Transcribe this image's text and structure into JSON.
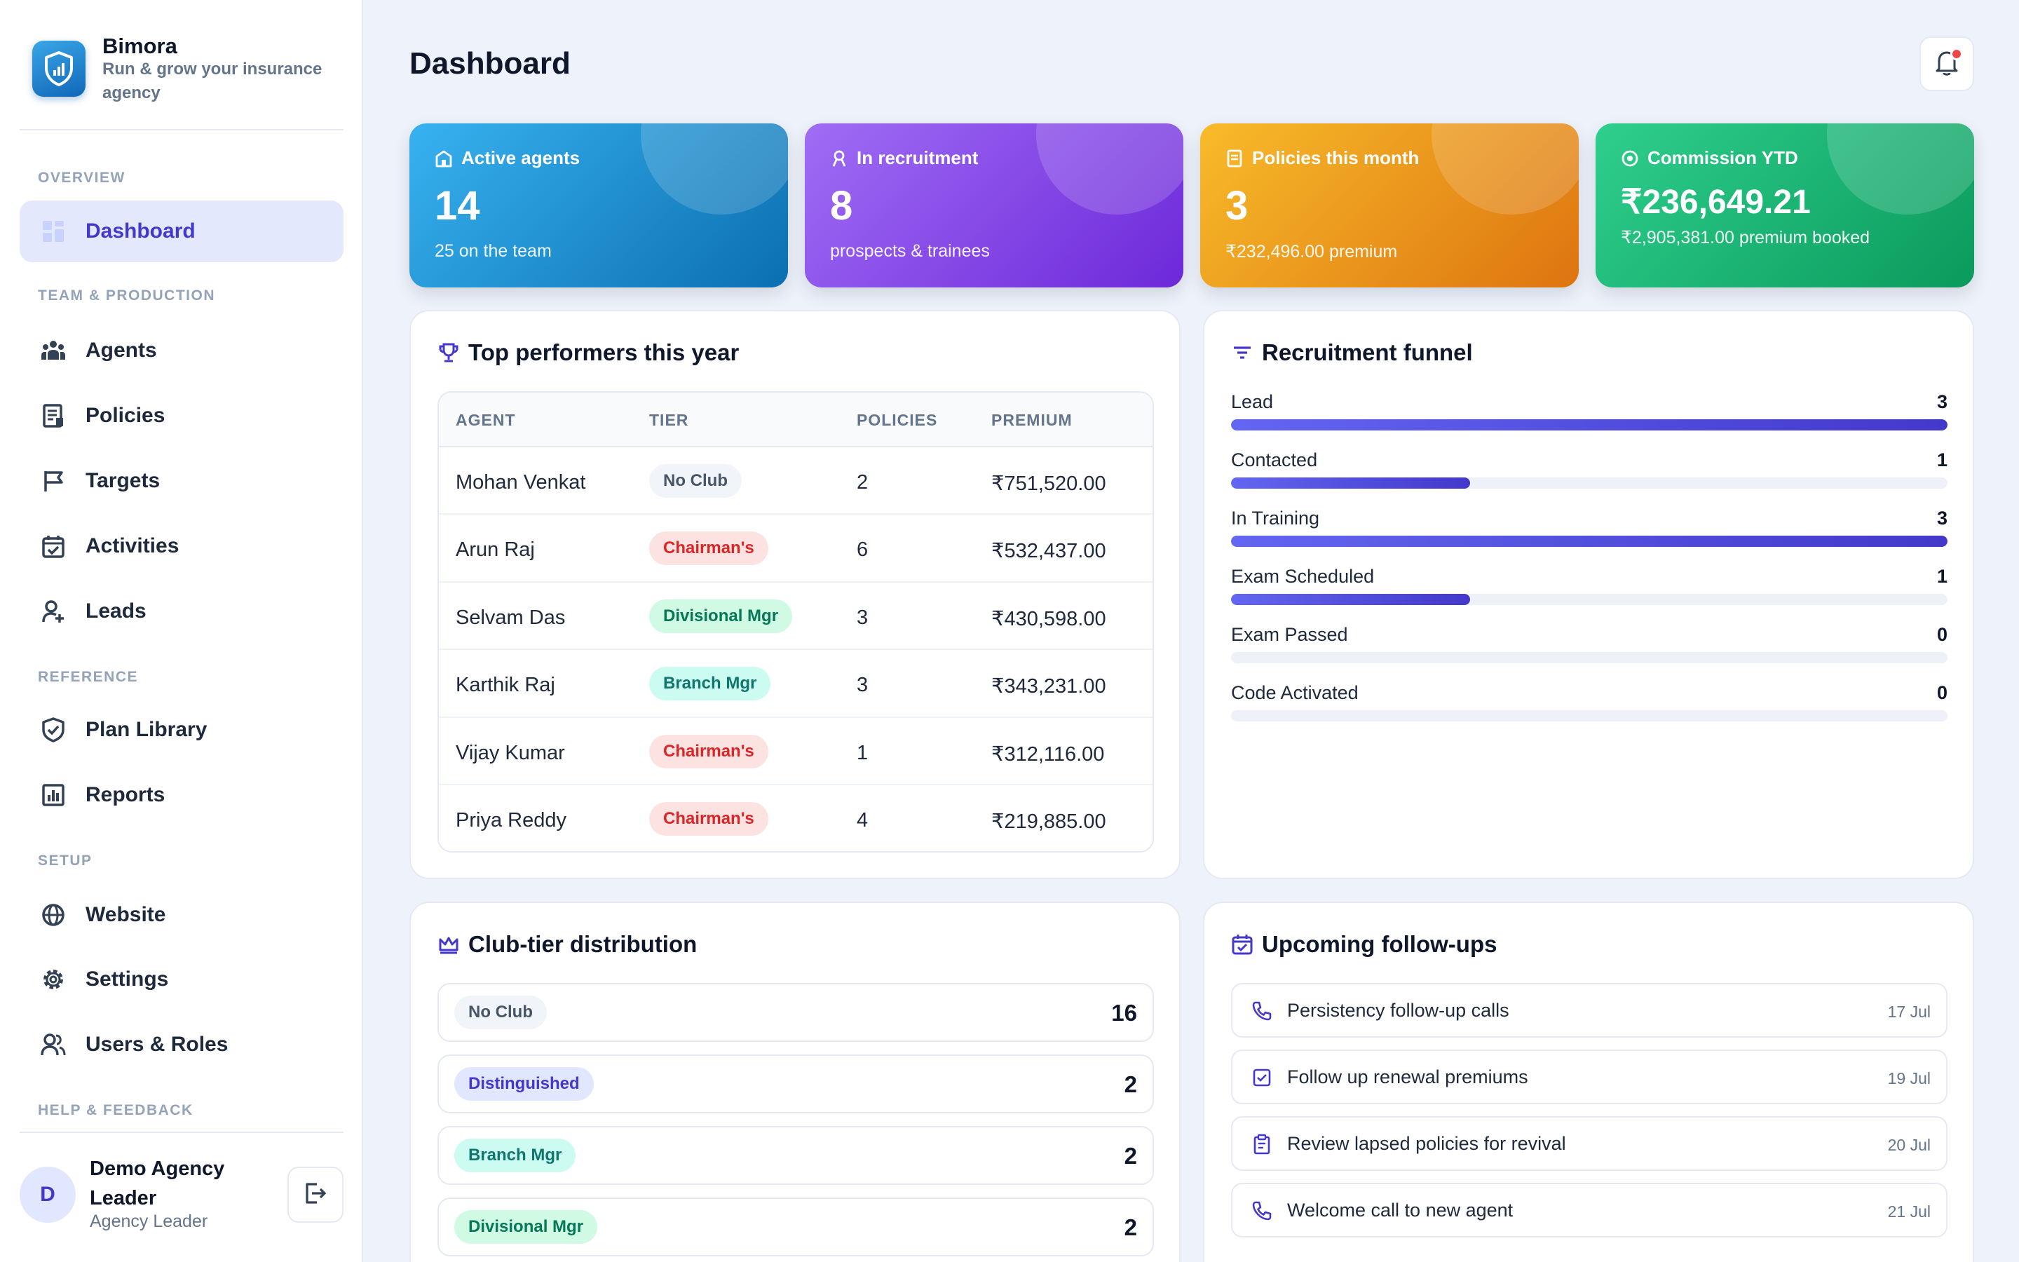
{
  "brand": {
    "name": "Bimora",
    "tagline": "Run & grow your insurance agency"
  },
  "nav": {
    "overview_label": "OVERVIEW",
    "team_label": "TEAM & PRODUCTION",
    "reference_label": "REFERENCE",
    "setup_label": "SETUP",
    "help_label": "HELP & FEEDBACK",
    "items": [
      {
        "label": "Dashboard",
        "icon": "grid-icon",
        "active": true
      },
      {
        "label": "Agents",
        "icon": "people-icon"
      },
      {
        "label": "Policies",
        "icon": "document-icon"
      },
      {
        "label": "Targets",
        "icon": "flag-icon"
      },
      {
        "label": "Activities",
        "icon": "calendar-check-icon"
      },
      {
        "label": "Leads",
        "icon": "user-plus-icon"
      },
      {
        "label": "Plan Library",
        "icon": "shield-check-icon"
      },
      {
        "label": "Reports",
        "icon": "bar-chart-icon"
      },
      {
        "label": "Website",
        "icon": "globe-icon"
      },
      {
        "label": "Settings",
        "icon": "gear-icon"
      },
      {
        "label": "Users & Roles",
        "icon": "users-icon"
      }
    ]
  },
  "user": {
    "initial": "D",
    "name": "Demo Agency Leader",
    "role": "Agency Leader"
  },
  "page": {
    "title": "Dashboard"
  },
  "stats": [
    {
      "label": "Active agents",
      "value": "14",
      "sub": "25 on the team",
      "color": "#1e90d6"
    },
    {
      "label": "In recruitment",
      "value": "8",
      "sub": "prospects & trainees",
      "color": "#8b5cf6"
    },
    {
      "label": "Policies this month",
      "value": "3",
      "sub": "₹232,496.00 premium",
      "color": "#f59e0b"
    },
    {
      "label": "Commission YTD",
      "value": "₹236,649.21",
      "sub": "₹2,905,381.00 premium booked",
      "color": "#10b981"
    }
  ],
  "top_performers": {
    "title": "Top performers this year",
    "columns": [
      "AGENT",
      "TIER",
      "POLICIES",
      "PREMIUM"
    ],
    "rows": [
      {
        "agent": "Mohan Venkat",
        "tier": "No Club",
        "tier_style": "gray",
        "policies": "2",
        "premium": "₹751,520.00"
      },
      {
        "agent": "Arun Raj",
        "tier": "Chairman's",
        "tier_style": "red",
        "policies": "6",
        "premium": "₹532,437.00"
      },
      {
        "agent": "Selvam Das",
        "tier": "Divisional Mgr",
        "tier_style": "green",
        "policies": "3",
        "premium": "₹430,598.00"
      },
      {
        "agent": "Karthik Raj",
        "tier": "Branch Mgr",
        "tier_style": "teal",
        "policies": "3",
        "premium": "₹343,231.00"
      },
      {
        "agent": "Vijay Kumar",
        "tier": "Chairman's",
        "tier_style": "red",
        "policies": "1",
        "premium": "₹312,116.00"
      },
      {
        "agent": "Priya Reddy",
        "tier": "Chairman's",
        "tier_style": "red",
        "policies": "4",
        "premium": "₹219,885.00"
      }
    ]
  },
  "funnel": {
    "title": "Recruitment funnel",
    "max": 3,
    "stages": [
      {
        "label": "Lead",
        "value": 3
      },
      {
        "label": "Contacted",
        "value": 1
      },
      {
        "label": "In Training",
        "value": 3
      },
      {
        "label": "Exam Scheduled",
        "value": 1
      },
      {
        "label": "Exam Passed",
        "value": 0
      },
      {
        "label": "Code Activated",
        "value": 0
      }
    ]
  },
  "club_tiers": {
    "title": "Club-tier distribution",
    "rows": [
      {
        "tier": "No Club",
        "tier_style": "gray",
        "count": "16"
      },
      {
        "tier": "Distinguished",
        "tier_style": "indigo",
        "count": "2"
      },
      {
        "tier": "Branch Mgr",
        "tier_style": "teal",
        "count": "2"
      },
      {
        "tier": "Divisional Mgr",
        "tier_style": "green",
        "count": "2"
      }
    ]
  },
  "followups": {
    "title": "Upcoming follow-ups",
    "items": [
      {
        "text": "Persistency follow-up calls",
        "date": "17 Jul",
        "icon": "phone-icon"
      },
      {
        "text": "Follow up renewal premiums",
        "date": "19 Jul",
        "icon": "checkbox-icon"
      },
      {
        "text": "Review lapsed policies for revival",
        "date": "20 Jul",
        "icon": "clipboard-icon"
      },
      {
        "text": "Welcome call to new agent",
        "date": "21 Jul",
        "icon": "phone-icon"
      }
    ]
  },
  "colors": {
    "accent": "#4338ca",
    "pill_gray_bg": "#f1f5f9",
    "pill_gray_fg": "#475569",
    "pill_red_bg": "#fde2e2",
    "pill_red_fg": "#dc2626",
    "pill_green_bg": "#d1fae5",
    "pill_green_fg": "#047857",
    "pill_teal_bg": "#ccfbf1",
    "pill_teal_fg": "#0f766e",
    "pill_indigo_bg": "#e0e7ff",
    "pill_indigo_fg": "#4338ca"
  }
}
